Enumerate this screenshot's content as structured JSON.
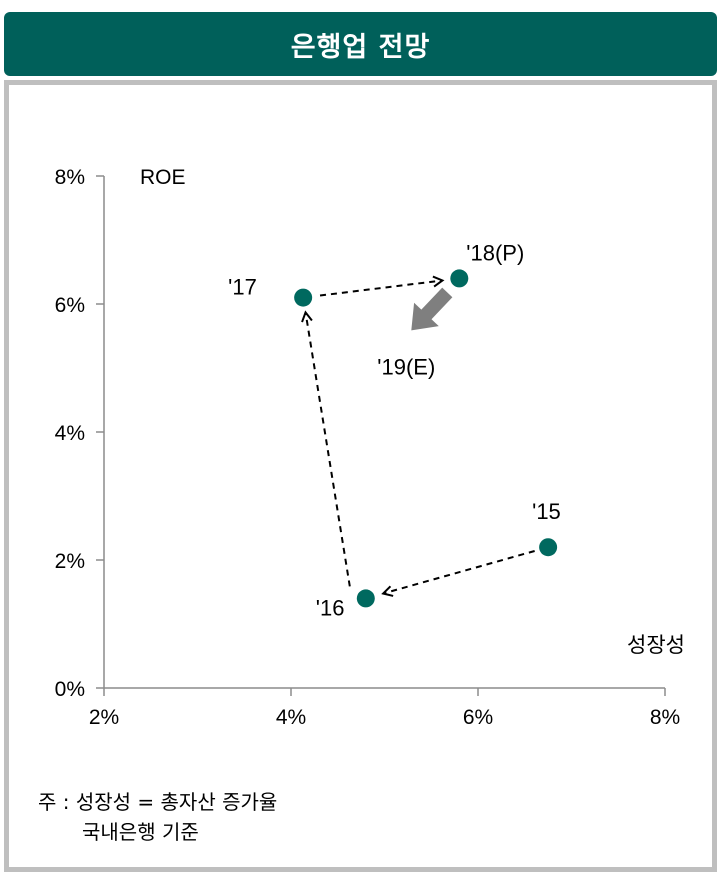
{
  "header": {
    "title": "은행업 전망"
  },
  "chart_data": {
    "type": "scatter",
    "title": "은행업 전망",
    "xlabel": "성장성",
    "ylabel": "ROE",
    "xlim": [
      2,
      8
    ],
    "ylim": [
      0,
      8
    ],
    "x_ticks": [
      "2%",
      "4%",
      "6%",
      "8%"
    ],
    "y_ticks": [
      "0%",
      "2%",
      "4%",
      "6%",
      "8%"
    ],
    "points": [
      {
        "label": "'15",
        "x": 6.75,
        "y": 2.2
      },
      {
        "label": "'16",
        "x": 4.8,
        "y": 1.4
      },
      {
        "label": "'17",
        "x": 4.13,
        "y": 6.1
      },
      {
        "label": "'18(P)",
        "x": 5.8,
        "y": 6.4
      }
    ],
    "forecast": {
      "label": "'19(E)",
      "direction": "down-left"
    },
    "marker_color": "#00695f",
    "arrow_color": "#7f7f7f"
  },
  "notes": {
    "line1": "주 : 성장성 = 총자산 증가율",
    "line2": "국내은행 기준"
  }
}
